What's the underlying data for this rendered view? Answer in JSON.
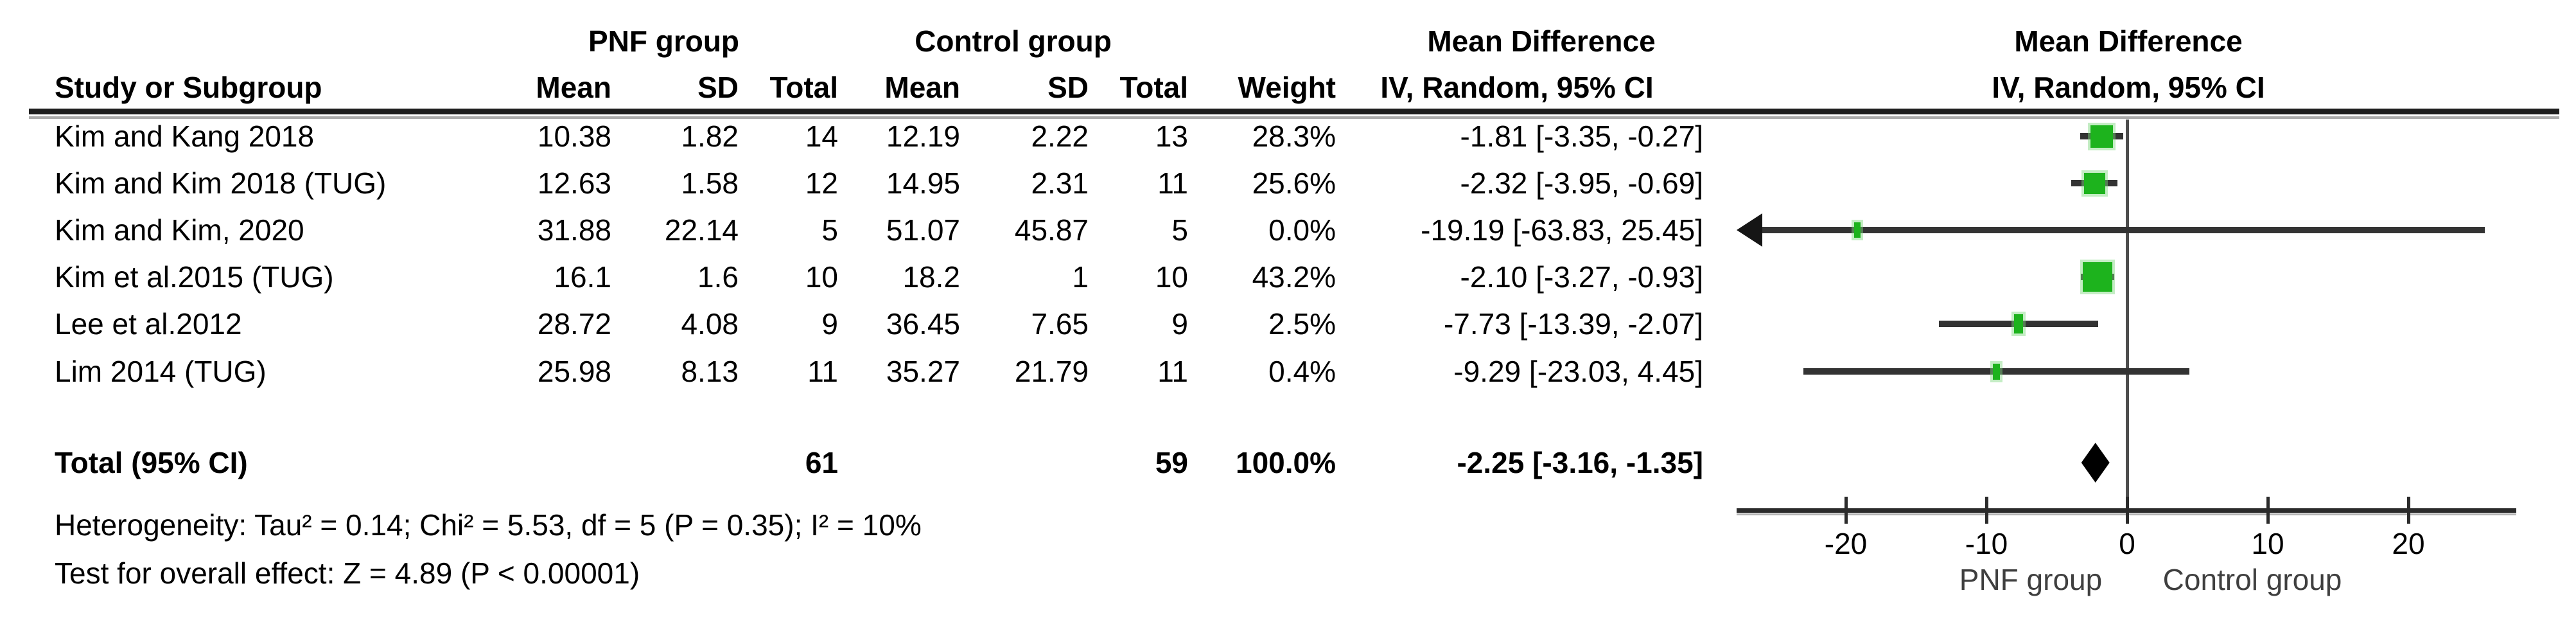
{
  "header": {
    "study": "Study or Subgroup",
    "pnf_group": "PNF group",
    "control_group": "Control group",
    "mean_difference": "Mean Difference",
    "method_label": "IV, Random, 95% CI",
    "cols": {
      "mean": "Mean",
      "sd": "SD",
      "total": "Total",
      "weight": "Weight"
    }
  },
  "footer": {
    "heterogeneity": "Heterogeneity: Tau² = 0.14; Chi² = 5.53, df = 5 (P = 0.35); I² = 10%",
    "overall_effect": "Test for overall effect: Z = 4.89 (P < 0.00001)"
  },
  "colors": {
    "square_green": "#1db31d",
    "line_dark": "#333333",
    "diamond_black": "#000000"
  },
  "chart_data": {
    "type": "scatter",
    "subtype": "forest-plot",
    "effect_measure": "Mean Difference",
    "method": "IV, Random, 95% CI",
    "studies": [
      {
        "name": "Kim and Kang 2018",
        "mean1": "10.38",
        "sd1": "1.82",
        "total1": "14",
        "mean2": "12.19",
        "sd2": "2.22",
        "total2": "13",
        "weight": "28.3%",
        "weight_num": 28.3,
        "ci_text": "-1.81 [-3.35, -0.27]",
        "est": -1.81,
        "lo": -3.35,
        "hi": -0.27
      },
      {
        "name": "Kim and Kim 2018 (TUG)",
        "mean1": "12.63",
        "sd1": "1.58",
        "total1": "12",
        "mean2": "14.95",
        "sd2": "2.31",
        "total2": "11",
        "weight": "25.6%",
        "weight_num": 25.6,
        "ci_text": "-2.32 [-3.95, -0.69]",
        "est": -2.32,
        "lo": -3.95,
        "hi": -0.69
      },
      {
        "name": "Kim and Kim, 2020",
        "mean1": "31.88",
        "sd1": "22.14",
        "total1": "5",
        "mean2": "51.07",
        "sd2": "45.87",
        "total2": "5",
        "weight": "0.0%",
        "weight_num": 0.0,
        "ci_text": "-19.19 [-63.83, 25.45]",
        "est": -19.19,
        "lo": -63.83,
        "hi": 25.45
      },
      {
        "name": "Kim et al.2015 (TUG)",
        "mean1": "16.1",
        "sd1": "1.6",
        "total1": "10",
        "mean2": "18.2",
        "sd2": "1",
        "total2": "10",
        "weight": "43.2%",
        "weight_num": 43.2,
        "ci_text": "-2.10 [-3.27, -0.93]",
        "est": -2.1,
        "lo": -3.27,
        "hi": -0.93
      },
      {
        "name": "Lee et al.2012",
        "mean1": "28.72",
        "sd1": "4.08",
        "total1": "9",
        "mean2": "36.45",
        "sd2": "7.65",
        "total2": "9",
        "weight": "2.5%",
        "weight_num": 2.5,
        "ci_text": "-7.73 [-13.39, -2.07]",
        "est": -7.73,
        "lo": -13.39,
        "hi": -2.07
      },
      {
        "name": "Lim 2014 (TUG)",
        "mean1": "25.98",
        "sd1": "8.13",
        "total1": "11",
        "mean2": "35.27",
        "sd2": "21.79",
        "total2": "11",
        "weight": "0.4%",
        "weight_num": 0.4,
        "ci_text": "-9.29 [-23.03, 4.45]",
        "est": -9.29,
        "lo": -23.03,
        "hi": 4.45
      }
    ],
    "total": {
      "label": "Total (95% CI)",
      "total1": "61",
      "total2": "59",
      "weight": "100.0%",
      "ci_text": "-2.25 [-3.16, -1.35]",
      "est": -2.25,
      "lo": -3.16,
      "hi": -1.35
    },
    "axis": {
      "ticks": [
        -20,
        -10,
        0,
        10,
        20
      ],
      "xmin": -27.5,
      "xmax": 27.5,
      "left_label": "PNF group",
      "right_label": "Control group",
      "zero_line": 0
    },
    "heterogeneity": "Tau² = 0.14; Chi² = 5.53, df = 5 (P = 0.35); I² = 10%",
    "overall_effect_test": "Z = 4.89 (P < 0.00001)"
  }
}
